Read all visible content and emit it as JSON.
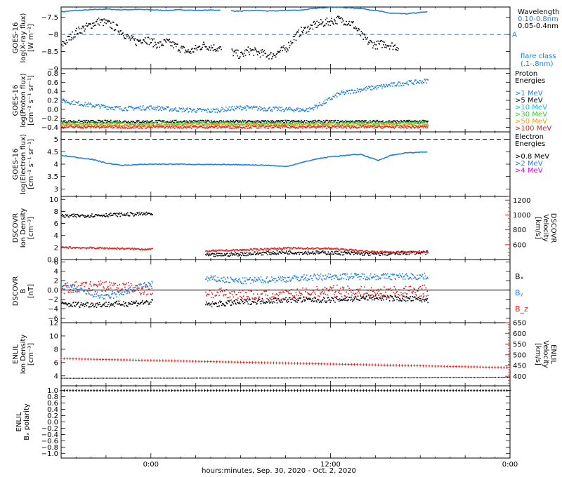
{
  "colors": {
    "black": "#000000",
    "blue": "#1f7fe0",
    "cyan": "#00c8d8",
    "green": "#33cc33",
    "orange": "#ff9900",
    "red": "#e02020",
    "magenta": "#e000e0"
  },
  "figure": {
    "x_axis_label": "hours:minutes, Sep. 30, 2020 - Oct. 2, 2020",
    "x_tick_labels": [
      "0:00",
      "12:00",
      "0:00"
    ]
  },
  "chart_data": [
    {
      "type": "scatter",
      "id": "xray",
      "ylabel_lines": [
        "GOES-16",
        "log(X-ray flux)",
        "[W m⁻²]"
      ],
      "ylim": [
        -9.0,
        -7.2
      ],
      "yticks": [
        -9.0,
        -8.5,
        -8.0,
        -7.5
      ],
      "right_header": "Wavelength",
      "legend": [
        {
          "text": "0.10-0.8nm",
          "color": "blue"
        },
        {
          "text": "0.05-0.4nm",
          "color": "black"
        }
      ],
      "flare_class_label": "flare class",
      "flare_class_sub": "(.1-.8nm)",
      "flare_lines": [
        {
          "y": -8.0,
          "label": "A"
        }
      ],
      "series": [
        {
          "color": "blue",
          "mode": "line",
          "x": [
            -6,
            -5,
            -4,
            -3,
            -2,
            -1,
            0,
            1,
            2,
            3,
            4,
            4.8,
            5.2,
            6,
            7,
            8,
            9,
            10,
            11,
            12,
            13,
            14,
            15,
            16,
            17,
            18,
            18.5
          ],
          "y": [
            -7.34,
            -7.3,
            -7.28,
            -7.26,
            -7.28,
            -7.27,
            -7.28,
            -7.3,
            -7.28,
            -7.3,
            -7.29,
            -7.29,
            -7.31,
            -7.32,
            -7.3,
            -7.32,
            -7.3,
            -7.29,
            -7.24,
            -7.2,
            -7.22,
            -7.24,
            -7.3,
            -7.38,
            -7.4,
            -7.36,
            -7.34
          ],
          "gaps": [
            [
              4.7,
              5.35
            ]
          ]
        },
        {
          "color": "black",
          "mode": "noisy",
          "noise": 0.12,
          "x": [
            -6,
            -5.5,
            -5,
            -4.5,
            -4,
            -3.5,
            -3,
            -2.5,
            -2,
            -1.5,
            -1,
            -0.5,
            0,
            0.5,
            1,
            1.5,
            2,
            2.5,
            3,
            3.5,
            4,
            4.5,
            5.4,
            6,
            6.5,
            7,
            7.5,
            8,
            8.5,
            9,
            9.5,
            10,
            10.5,
            11,
            11.5,
            12,
            12.5,
            13,
            13.5,
            14,
            14.5,
            15,
            15.5,
            16,
            16.5
          ],
          "y": [
            -8.3,
            -8.1,
            -7.9,
            -7.8,
            -7.7,
            -7.6,
            -7.65,
            -7.75,
            -7.9,
            -8.1,
            -8.2,
            -8.1,
            -8.2,
            -8.3,
            -8.2,
            -8.3,
            -8.4,
            -8.5,
            -8.4,
            -8.3,
            -8.35,
            -8.4,
            -8.5,
            -8.6,
            -8.45,
            -8.5,
            -8.55,
            -8.6,
            -8.5,
            -8.4,
            -8.1,
            -7.9,
            -7.8,
            -7.7,
            -7.65,
            -7.6,
            -7.55,
            -7.6,
            -7.7,
            -8.0,
            -8.2,
            -8.3,
            -8.25,
            -8.3,
            -8.35
          ],
          "gaps": [
            [
              4.7,
              5.35
            ],
            [
              16.8,
              25
            ]
          ]
        }
      ]
    },
    {
      "type": "scatter",
      "id": "protons",
      "ylabel_lines": [
        "GOES-16",
        "log(Proton flux)",
        "[cm⁻² s⁻¹ sr⁻¹]"
      ],
      "ylim": [
        -0.5,
        0.9
      ],
      "yticks": [
        -0.4,
        -0.2,
        0.0,
        0.2,
        0.4,
        0.6,
        0.8
      ],
      "right_header_lines": [
        "Proton",
        "Energies"
      ],
      "legend": [
        {
          "text": ">1 MeV",
          "color": "blue"
        },
        {
          "text": ">5 MeV",
          "color": "black"
        },
        {
          "text": ">10 MeV",
          "color": "cyan"
        },
        {
          "text": ">30 MeV",
          "color": "green"
        },
        {
          "text": ">50 MeV",
          "color": "orange"
        },
        {
          "text": ">100 MeV",
          "color": "red"
        }
      ],
      "series": [
        {
          "color": "blue",
          "mode": "noisy",
          "noise": 0.05,
          "x": [
            -6,
            -4,
            -2,
            0,
            2,
            4,
            6,
            8,
            10,
            10.5,
            11.5,
            12.5,
            14,
            15,
            16,
            17,
            18,
            18.5
          ],
          "y": [
            0.2,
            0.1,
            0.03,
            0.05,
            0.0,
            -0.02,
            0.05,
            0.02,
            0.0,
            0.0,
            0.15,
            0.35,
            0.45,
            0.5,
            0.55,
            0.6,
            0.62,
            0.65
          ],
          "gaps": [
            [
              18.6,
              25
            ]
          ]
        },
        {
          "color": "black",
          "mode": "noisy",
          "noise": 0.03,
          "x": [
            -6,
            18.5
          ],
          "y": [
            -0.26,
            -0.26
          ],
          "gaps": [
            [
              18.6,
              25
            ]
          ]
        },
        {
          "color": "green",
          "mode": "noisy",
          "noise": 0.03,
          "x": [
            -6,
            18.5
          ],
          "y": [
            -0.3,
            -0.3
          ],
          "gaps": [
            [
              18.6,
              25
            ]
          ]
        },
        {
          "color": "orange",
          "mode": "noisy",
          "noise": 0.03,
          "x": [
            -6,
            18.5
          ],
          "y": [
            -0.34,
            -0.34
          ],
          "gaps": [
            [
              18.6,
              25
            ]
          ]
        },
        {
          "color": "red",
          "mode": "noisy",
          "noise": 0.03,
          "x": [
            -6,
            18.5
          ],
          "y": [
            -0.38,
            -0.38
          ],
          "gaps": [
            [
              18.6,
              25
            ]
          ]
        }
      ]
    },
    {
      "type": "line",
      "id": "electrons",
      "ylabel_lines": [
        "GOES-16",
        "log(Electron flux)",
        "[cm⁻² s⁻¹ sr⁻¹]"
      ],
      "ylim": [
        2.7,
        5.3
      ],
      "yticks": [
        3.0,
        3.5,
        4.0,
        4.5,
        5.0
      ],
      "right_header_lines": [
        "Electron",
        "Energies"
      ],
      "legend": [
        {
          "text": ">0.8 MeV",
          "color": "black"
        },
        {
          "text": ">2 MeV",
          "color": "blue"
        },
        {
          "text": ">4 MeV",
          "color": "magenta"
        }
      ],
      "threshold_lines": [
        {
          "y": 5.0
        }
      ],
      "series": [
        {
          "color": "blue",
          "mode": "line",
          "x": [
            -6,
            -4,
            -3,
            -2,
            0,
            2,
            4,
            6,
            8,
            9,
            10,
            11,
            12,
            14,
            15.2,
            16,
            17,
            18,
            18.5
          ],
          "y": [
            4.35,
            4.2,
            4.05,
            3.95,
            4.0,
            4.0,
            3.98,
            3.98,
            3.95,
            3.9,
            4.05,
            4.2,
            4.3,
            4.4,
            4.15,
            4.35,
            4.45,
            4.48,
            4.5
          ],
          "gaps": [
            [
              18.6,
              25
            ]
          ]
        }
      ]
    },
    {
      "type": "scatter",
      "id": "dscovr_plasma",
      "ylabel_lines": [
        "DSCOVR",
        "Ion Density",
        "[cm⁻³]"
      ],
      "ylim": [
        0,
        10.5
      ],
      "yticks": [
        0,
        2,
        4,
        6,
        8,
        10
      ],
      "right_axis": {
        "label_lines": [
          "DSCOVR",
          "Velocity",
          "[km/s]"
        ],
        "ticks": [
          600,
          800,
          1000,
          1200
        ],
        "ylim": [
          400,
          1250
        ],
        "color": "red"
      },
      "series": [
        {
          "color": "black",
          "mode": "noisy",
          "noise": 0.3,
          "x": [
            -6,
            -3,
            0,
            3.5,
            4,
            6,
            9,
            12,
            15,
            18,
            18.5
          ],
          "y": [
            7.3,
            7.5,
            7.7,
            0.8,
            0.8,
            1.0,
            1.3,
            1.2,
            1.0,
            1.3,
            1.2
          ],
          "gaps": [
            [
              0.1,
              3.6
            ],
            [
              18.6,
              25
            ]
          ]
        },
        {
          "color": "red",
          "mode": "noisy",
          "noise": 12,
          "right_axis": true,
          "x": [
            -6,
            -3,
            0,
            3.5,
            6,
            9,
            12,
            15,
            18.5
          ],
          "y": [
            570,
            560,
            545,
            520,
            535,
            560,
            555,
            510,
            505
          ],
          "gaps": [
            [
              0.1,
              3.6
            ],
            [
              18.6,
              25
            ]
          ]
        }
      ]
    },
    {
      "type": "scatter",
      "id": "dscovr_mag",
      "ylabel_lines": [
        "DSCOVR",
        "B",
        "[nT]"
      ],
      "ylim": [
        -7,
        6.5
      ],
      "yticks": [
        -6,
        -4,
        -2,
        0,
        2,
        4,
        6
      ],
      "zero_line": true,
      "legend": [
        {
          "text": "Bₓ",
          "color": "black"
        },
        {
          "text": "Bᵧ",
          "color": "blue"
        },
        {
          "text": "B_z",
          "color": "red"
        }
      ],
      "series": [
        {
          "color": "black",
          "mode": "noisy",
          "noise": 0.6,
          "x": [
            -6,
            -3,
            0,
            4,
            6,
            9,
            12,
            15,
            18.5
          ],
          "y": [
            -3.0,
            -3.0,
            -2.5,
            -3.0,
            -2.5,
            -2.0,
            -2.0,
            -1.5,
            -2.0
          ],
          "gaps": [
            [
              0.1,
              3.6
            ],
            [
              18.6,
              25
            ]
          ]
        },
        {
          "color": "blue",
          "mode": "noisy",
          "noise": 0.7,
          "x": [
            -6,
            -3,
            0,
            4,
            6,
            9,
            12,
            15,
            18.5
          ],
          "y": [
            1.0,
            -1.5,
            1.5,
            2.5,
            2.0,
            2.5,
            3.0,
            3.0,
            3.0
          ],
          "gaps": [
            [
              0.1,
              3.6
            ],
            [
              18.6,
              25
            ]
          ]
        },
        {
          "color": "red",
          "mode": "noisy",
          "noise": 1.2,
          "x": [
            -6,
            -3,
            0,
            4,
            6,
            9,
            12,
            15,
            18.5
          ],
          "y": [
            0.5,
            1.0,
            0.0,
            -0.5,
            -1.0,
            -1.0,
            0.0,
            -0.5,
            0.0
          ],
          "gaps": [
            [
              0.1,
              3.6
            ],
            [
              18.6,
              25
            ]
          ]
        }
      ]
    },
    {
      "type": "line",
      "id": "enlil_plasma",
      "ylabel_lines": [
        "ENLIL",
        "Ion Density",
        "[cm⁻³]"
      ],
      "ylim": [
        2.5,
        12
      ],
      "yticks": [
        4,
        6,
        8,
        10,
        12
      ],
      "right_axis": {
        "label_lines": [
          "ENLIL",
          "Velocity",
          "[km/s]"
        ],
        "ticks": [
          400,
          450,
          500,
          550,
          600,
          650
        ],
        "ylim": [
          355,
          650
        ],
        "color": "red"
      },
      "series": [
        {
          "color": "black",
          "mode": "dotted",
          "x": [
            -6,
            24
          ],
          "y": [
            3.7,
            3.8
          ]
        },
        {
          "color": "red",
          "mode": "crosses",
          "right_axis": true,
          "x": [
            -6,
            24
          ],
          "y": [
            482,
            440
          ]
        }
      ]
    },
    {
      "type": "line",
      "id": "enlil_polarity",
      "ylabel_lines": [
        "ENLIL",
        "Bₓ polarity"
      ],
      "ylim": [
        -1.15,
        1.15
      ],
      "yticks": [
        -1.0,
        -0.8,
        -0.6,
        -0.4,
        -0.2,
        0.0,
        0.2,
        0.4,
        0.6,
        0.8,
        1.0
      ],
      "series": [
        {
          "color": "black",
          "mode": "crosses",
          "x": [
            -6,
            24
          ],
          "y": [
            1.0,
            1.0
          ]
        }
      ]
    }
  ]
}
